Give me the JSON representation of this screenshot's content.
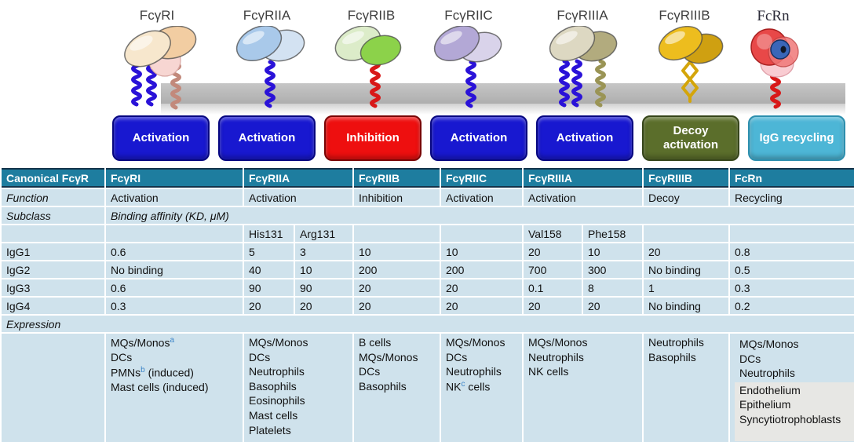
{
  "receptors": [
    {
      "name": "FcγRI"
    },
    {
      "name": "FcγRIIA"
    },
    {
      "name": "FcγRIIB"
    },
    {
      "name": "FcγRIIC"
    },
    {
      "name": "FcγRIIIA"
    },
    {
      "name": "FcγRIIIB"
    },
    {
      "name": "FcRn"
    }
  ],
  "buttons": [
    {
      "label": "Activation",
      "type": "activation"
    },
    {
      "label": "Activation",
      "type": "activation"
    },
    {
      "label": "Inhibition",
      "type": "inhibition"
    },
    {
      "label": "Activation",
      "type": "activation"
    },
    {
      "label": "Activation",
      "type": "activation"
    },
    {
      "label": "Decoy activation",
      "type": "decoy"
    },
    {
      "label": "IgG recycling",
      "type": "recycling"
    }
  ],
  "colors": {
    "activation_blue": "#1818d0",
    "inhibition_red": "#ee0f0f",
    "decoy_olive": "#5b6e2b",
    "recycling_cyan": "#4db6d6",
    "table_header_bg": "#1e7d9f",
    "table_cell_bg": "#cfe2ec",
    "membrane_gray": "#b5b5b5",
    "superscript_blue": "#3c85c8"
  },
  "table": {
    "header": [
      "Canonical FcγR",
      "FcγRI",
      "FcγRIIA",
      "FcγRIIB",
      "FcγRIIC",
      "FcγRIIIA",
      "FcγRIIIB",
      "FcRn"
    ],
    "function_row": {
      "label": "Function",
      "values": [
        "Activation",
        "Activation",
        "Inhibition",
        "Activation",
        "Activation",
        "Decoy",
        "Recycling"
      ]
    },
    "subclass_row": {
      "label": "Subclass",
      "note": "Binding affinity (KD, μM)"
    },
    "allele_row": {
      "his": "His131",
      "arg": "Arg131",
      "val": "Val158",
      "phe": "Phe158"
    },
    "igg_rows": [
      {
        "label": "IgG1",
        "values": [
          "0.6",
          "5",
          "3",
          "10",
          "10",
          "20",
          "10",
          "20",
          "0.8"
        ]
      },
      {
        "label": "IgG2",
        "values": [
          "No binding",
          "40",
          "10",
          "200",
          "200",
          "700",
          "300",
          "No binding",
          "0.5"
        ]
      },
      {
        "label": "IgG3",
        "values": [
          "0.6",
          "90",
          "90",
          "20",
          "20",
          "0.1",
          "8",
          "1",
          "0.3"
        ]
      },
      {
        "label": "IgG4",
        "values": [
          "0.3",
          "20",
          "20",
          "20",
          "20",
          "20",
          "20",
          "No binding",
          "0.2"
        ]
      }
    ],
    "expression_label": "Expression",
    "expression": {
      "fcgri": "MQs/Monos^a\nDCs\nPMNs^b (induced)\nMast cells (induced)",
      "fcgriia": "MQs/Monos\nDCs\nNeutrophils\nBasophils\nEosinophils\nMast cells\nPlatelets",
      "fcgriib": "B cells\nMQs/Monos\nDCs\nBasophils",
      "fcgriic": "MQs/Monos\nDCs\nNeutrophils\nNK^c cells",
      "fcgriiia": "MQs/Monos\nNeutrophils\nNK cells",
      "fcgriiib": "Neutrophils\nBasophils",
      "fcrn_top": "MQs/Monos\nDCs\nNeutrophils",
      "fcrn_gray": "Endothelium\nEpithelium\nSyncytiotrophoblasts"
    }
  }
}
